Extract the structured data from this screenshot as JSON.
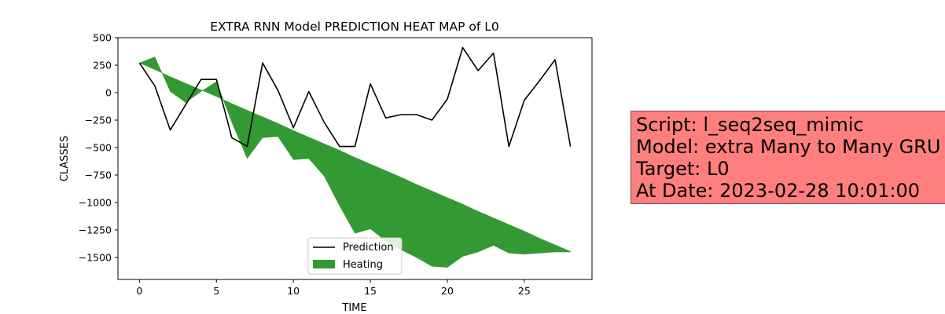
{
  "chart_data": {
    "type": "line",
    "title": "EXTRA RNN Model PREDICTION HEAT MAP of L0",
    "xlabel": "TIME",
    "ylabel": "CLASSES",
    "xlim": [
      -1.4,
      29.4
    ],
    "ylim": [
      -1700,
      500
    ],
    "xticks": [
      0,
      5,
      10,
      15,
      20,
      25
    ],
    "yticks": [
      500,
      250,
      0,
      -250,
      -500,
      -750,
      -1000,
      -1250,
      -1500
    ],
    "ytick_labels": [
      "500",
      "250",
      "0",
      "−250",
      "−500",
      "−750",
      "−1000",
      "−1250",
      "−1500"
    ],
    "grid": false,
    "legend_position": "lower center",
    "series": [
      {
        "name": "Prediction",
        "kind": "line",
        "color": "#000000",
        "x": [
          0,
          1,
          2,
          3,
          4,
          5,
          6,
          7,
          8,
          9,
          10,
          11,
          12,
          13,
          14,
          15,
          16,
          17,
          18,
          19,
          20,
          21,
          22,
          23,
          24,
          25,
          26,
          27,
          28
        ],
        "y": [
          270,
          60,
          -340,
          -110,
          120,
          120,
          -410,
          -490,
          270,
          20,
          -320,
          10,
          -270,
          -490,
          -490,
          80,
          -230,
          -200,
          -200,
          -250,
          -60,
          410,
          200,
          360,
          -490,
          -70,
          110,
          300,
          -490
        ]
      },
      {
        "name": "Heating",
        "kind": "fill_between",
        "color": "#339933",
        "x": [
          0,
          1,
          2,
          3,
          4,
          5,
          6,
          7,
          8,
          9,
          10,
          11,
          12,
          13,
          14,
          15,
          16,
          17,
          18,
          19,
          20,
          21,
          22,
          23,
          24,
          25,
          26,
          27,
          28
        ],
        "y1": [
          270,
          210,
          145,
          85,
          25,
          -35,
          -100,
          -160,
          -220,
          -280,
          -345,
          -405,
          -465,
          -525,
          -590,
          -650,
          -710,
          -770,
          -835,
          -895,
          -955,
          -1015,
          -1080,
          -1140,
          -1200,
          -1260,
          -1325,
          -1385,
          -1445
        ],
        "y2": [
          270,
          325,
          10,
          -90,
          10,
          100,
          -270,
          -600,
          -410,
          -400,
          -610,
          -600,
          -760,
          -1030,
          -1280,
          -1240,
          -1350,
          -1430,
          -1500,
          -1580,
          -1590,
          -1490,
          -1450,
          -1390,
          -1460,
          -1470,
          -1460,
          -1450,
          -1450
        ]
      }
    ]
  },
  "info_box": {
    "lines": [
      "Script: l_seq2seq_mimic",
      "Model: extra Many to Many GRU",
      "Target: L0",
      "At Date: 2023-02-28 10:01:00"
    ],
    "background": "#ff7f7f"
  }
}
